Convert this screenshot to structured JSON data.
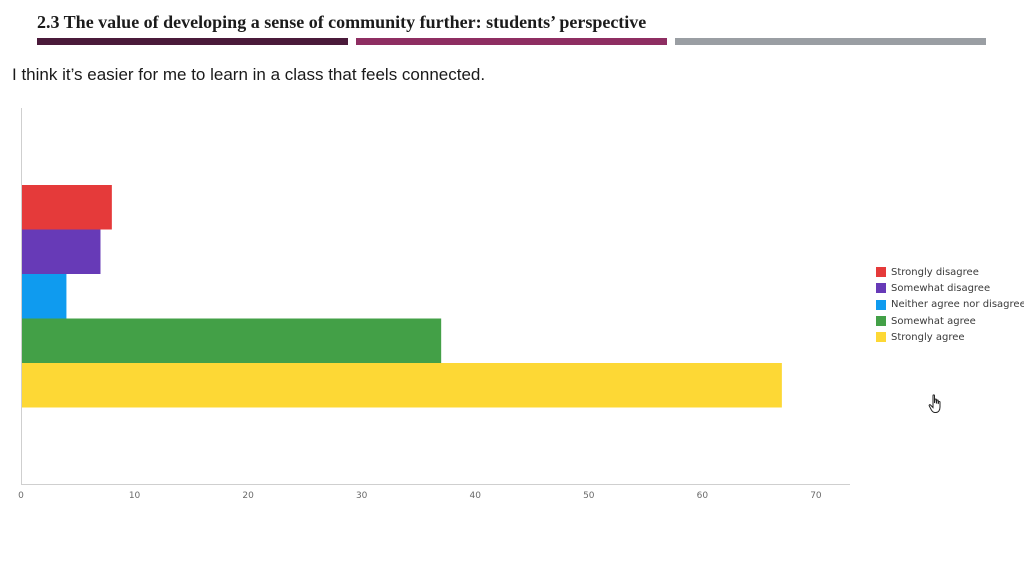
{
  "slide": {
    "title": "2.3 The value of developing a sense of community further: students’ perspective",
    "title_bar_colors": [
      "#4a1a3a",
      "#8e2e62",
      "#9a9ea3"
    ],
    "question": "I think it’s easier for me to learn in a class that feels connected."
  },
  "chart_data": {
    "type": "bar",
    "orientation": "horizontal",
    "title": "",
    "xlabel": "",
    "ylabel": "",
    "xlim": [
      0,
      73
    ],
    "xticks": [
      0,
      10,
      20,
      30,
      40,
      50,
      60,
      70
    ],
    "grid": false,
    "legend_position": "right",
    "categories": [
      "Strongly disagree",
      "Somewhat disagree",
      "Neither agree nor disagree",
      "Somewhat agree",
      "Strongly agree"
    ],
    "values": [
      8,
      7,
      4,
      37,
      67
    ],
    "colors": [
      "#e53a3a",
      "#673ab7",
      "#0f9bef",
      "#43a047",
      "#fdd835"
    ]
  }
}
